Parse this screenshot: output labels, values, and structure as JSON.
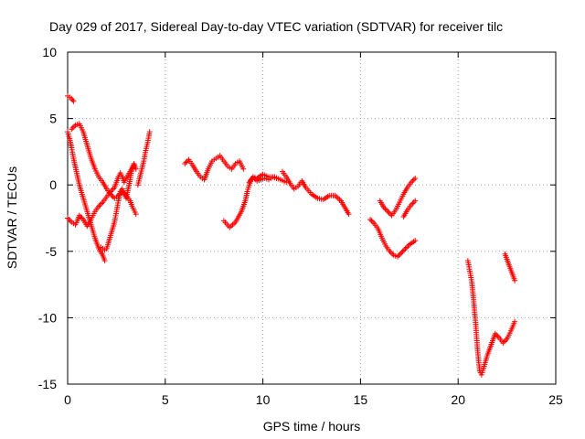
{
  "chart_data": {
    "type": "scatter",
    "title": "Day 029 of 2017, Sidereal Day-to-day VTEC variation (SDTVAR) for receiver tilc",
    "xlabel": "GPS time / hours",
    "ylabel": "SDTVAR / TECUs",
    "xlim": [
      0,
      25
    ],
    "ylim": [
      -15,
      10
    ],
    "xticks": [
      0,
      5,
      10,
      15,
      20,
      25
    ],
    "yticks": [
      -15,
      -10,
      -5,
      0,
      5,
      10
    ],
    "x_tick_labels": [
      "0",
      "5",
      "10",
      "15",
      "20",
      "25"
    ],
    "y_tick_labels": [
      "-15",
      "-10",
      "-5",
      "0",
      "5",
      "10"
    ],
    "grid": true,
    "marker": "+",
    "color": "#ff0000",
    "series": [
      {
        "x": [
          0.0,
          0.1,
          0.2,
          0.3
        ],
        "y": [
          6.7,
          6.6,
          6.5,
          6.3
        ]
      },
      {
        "x": [
          0.0,
          0.1,
          0.2,
          0.3,
          0.45,
          0.6,
          0.8,
          1.0,
          1.2,
          1.4,
          1.6,
          1.8,
          1.9
        ],
        "y": [
          4.0,
          3.5,
          2.8,
          2.0,
          1.0,
          0.0,
          -1.0,
          -2.0,
          -3.0,
          -4.0,
          -4.8,
          -5.3,
          -5.7
        ]
      },
      {
        "x": [
          0.2,
          0.4,
          0.6,
          0.8,
          1.0,
          1.2,
          1.4,
          1.6,
          1.8,
          2.0,
          2.2,
          2.4,
          2.6,
          2.8,
          3.0,
          3.2,
          3.3,
          3.4,
          3.5
        ],
        "y": [
          4.2,
          4.5,
          4.6,
          4.0,
          3.0,
          2.0,
          1.2,
          0.6,
          0.2,
          -0.3,
          -0.7,
          -1.0,
          -0.8,
          -0.5,
          -0.8,
          -1.2,
          -1.6,
          -1.9,
          -2.2
        ]
      },
      {
        "x": [
          0.0,
          0.2,
          0.4,
          0.5,
          0.6,
          0.8,
          1.0,
          1.2,
          1.4,
          1.6,
          1.8,
          2.0,
          2.2,
          2.4,
          2.5,
          2.6,
          2.7,
          2.8,
          2.9,
          3.0,
          3.2,
          3.4
        ],
        "y": [
          -2.5,
          -2.8,
          -3.0,
          -2.7,
          -2.3,
          -2.6,
          -3.1,
          -2.6,
          -2.0,
          -1.6,
          -1.3,
          -0.9,
          -0.5,
          -0.2,
          0.2,
          0.6,
          0.9,
          0.6,
          0.2,
          0.5,
          1.0,
          1.5
        ]
      },
      {
        "x": [
          1.7,
          1.8,
          1.9,
          2.0,
          2.2,
          2.4,
          2.5,
          2.6,
          2.7,
          2.8,
          2.9,
          3.0,
          3.1,
          3.2,
          3.3,
          3.4,
          3.5
        ],
        "y": [
          -4.7,
          -4.8,
          -4.9,
          -4.8,
          -3.8,
          -2.8,
          -2.0,
          -1.2,
          -0.5,
          -0.3,
          -0.6,
          -1.0,
          -0.3,
          0.4,
          1.2,
          1.6,
          1.2
        ]
      },
      {
        "x": [
          3.6,
          3.7,
          3.8,
          3.9,
          4.0,
          4.1,
          4.2
        ],
        "y": [
          0.0,
          0.6,
          1.2,
          1.8,
          2.6,
          3.2,
          4.0
        ]
      },
      {
        "x": [
          6.0,
          6.2,
          6.4,
          6.6,
          6.8,
          7.0,
          7.2,
          7.4,
          7.6,
          7.8,
          8.0,
          8.2,
          8.4,
          8.6,
          8.8,
          9.0
        ],
        "y": [
          1.6,
          1.9,
          1.5,
          1.0,
          0.6,
          0.4,
          1.2,
          1.8,
          2.0,
          2.2,
          1.8,
          1.4,
          1.2,
          1.6,
          1.8,
          1.2
        ]
      },
      {
        "x": [
          8.0,
          8.3,
          8.6,
          8.9,
          9.1,
          9.2,
          9.3,
          9.4,
          9.5,
          9.7,
          10.0,
          10.3,
          10.6,
          10.9,
          11.2
        ],
        "y": [
          -2.7,
          -3.2,
          -2.8,
          -2.0,
          -1.2,
          -0.5,
          0.0,
          0.4,
          0.6,
          0.5,
          0.8,
          0.6,
          0.6,
          0.4,
          0.2
        ]
      },
      {
        "x": [
          9.3,
          9.5,
          9.7,
          9.9,
          10.1,
          10.3,
          10.5,
          10.7
        ],
        "y": [
          0.2,
          0.6,
          0.3,
          0.4,
          0.5,
          0.4,
          0.6,
          0.5
        ]
      },
      {
        "x": [
          11.0,
          11.2,
          11.4,
          11.6,
          11.8,
          12.0,
          12.2,
          12.5,
          12.8,
          13.1,
          13.4,
          13.7,
          14.0,
          14.2,
          14.4
        ],
        "y": [
          1.0,
          0.6,
          0.1,
          -0.3,
          -0.1,
          0.3,
          -0.2,
          -0.7,
          -1.0,
          -1.1,
          -0.8,
          -0.8,
          -1.2,
          -1.7,
          -2.2
        ]
      },
      {
        "x": [
          15.5,
          15.7,
          15.9,
          16.1,
          16.3,
          16.5,
          16.7,
          16.9,
          17.1,
          17.3,
          17.5,
          17.8
        ],
        "y": [
          -2.6,
          -2.9,
          -3.3,
          -4.0,
          -4.6,
          -5.0,
          -5.3,
          -5.4,
          -5.1,
          -4.8,
          -4.5,
          -4.2
        ]
      },
      {
        "x": [
          16.0,
          16.2,
          16.4,
          16.6,
          16.8,
          17.0,
          17.2,
          17.4,
          17.6,
          17.8
        ],
        "y": [
          -1.2,
          -1.7,
          -2.0,
          -2.3,
          -1.9,
          -1.3,
          -0.7,
          -0.2,
          0.2,
          0.5
        ]
      },
      {
        "x": [
          17.2,
          17.4,
          17.6,
          17.8
        ],
        "y": [
          -2.4,
          -1.9,
          -1.5,
          -1.2
        ]
      },
      {
        "x": [
          20.5,
          20.6,
          20.7,
          20.8,
          20.9,
          21.0,
          21.1,
          21.2,
          21.3,
          21.5,
          21.7,
          21.9,
          22.1,
          22.3,
          22.5,
          22.7,
          22.9
        ],
        "y": [
          -5.7,
          -6.5,
          -7.3,
          -8.8,
          -10.5,
          -12.5,
          -14.0,
          -14.3,
          -13.8,
          -12.8,
          -12.0,
          -11.2,
          -11.5,
          -11.9,
          -11.6,
          -11.0,
          -10.3
        ]
      },
      {
        "x": [
          22.4,
          22.5,
          22.6,
          22.7,
          22.8,
          22.9
        ],
        "y": [
          -5.2,
          -5.6,
          -6.0,
          -6.4,
          -6.8,
          -7.2
        ]
      }
    ]
  }
}
